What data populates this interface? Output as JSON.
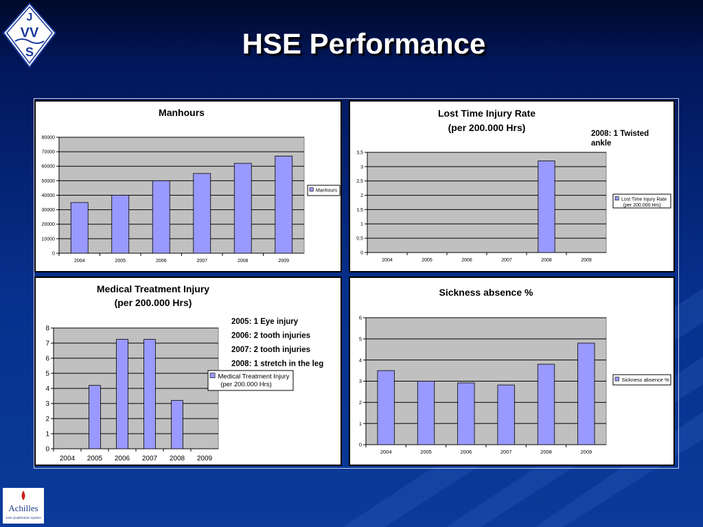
{
  "slide": {
    "title": "HSE Performance"
  },
  "logos": {
    "top": "JVS",
    "bottom_brand": "Achilles",
    "bottom_caption": "Joint Qualification System"
  },
  "colors": {
    "bar": "#9999ff",
    "plot_bg": "#c0c0c0",
    "background": "#06308c"
  },
  "chart_data": [
    {
      "type": "bar",
      "title": "Manhours",
      "categories": [
        "2004",
        "2005",
        "2006",
        "2007",
        "2008",
        "2009"
      ],
      "series": [
        {
          "name": "Manhours",
          "values": [
            35000,
            40000,
            50000,
            55000,
            62000,
            67000
          ]
        }
      ],
      "ylim": [
        0,
        80000
      ],
      "yticks": [
        "0",
        "10000",
        "20000",
        "30000",
        "40000",
        "50000",
        "60000",
        "70000",
        "80000"
      ],
      "legend": "right",
      "grid": true
    },
    {
      "type": "bar",
      "title": "Lost Time Injury Rate",
      "subtitle": "(per 200.000 Hrs)",
      "categories": [
        "2004",
        "2005",
        "2006",
        "2007",
        "2008",
        "2009"
      ],
      "series": [
        {
          "name": "Lost Time Injury Rate",
          "name2": "(per 200.000 Hrs)",
          "values": [
            0,
            0,
            0,
            0,
            3.2,
            0
          ]
        }
      ],
      "ylim": [
        0,
        3.5
      ],
      "yticks": [
        "0",
        "0,5",
        "1",
        "1,5",
        "2",
        "2,5",
        "3",
        "3,5"
      ],
      "annotations": [
        "2008: 1 Twisted",
        "ankle"
      ],
      "legend": "right",
      "grid": true
    },
    {
      "type": "bar",
      "title": "Medical Treatment Injury",
      "subtitle": "(per 200.000 Hrs)",
      "categories": [
        "2004",
        "2005",
        "2006",
        "2007",
        "2008",
        "2009"
      ],
      "series": [
        {
          "name": "Medical Treatment Injury",
          "name2": "(per 200.000 Hrs)",
          "values": [
            0,
            4.2,
            7.25,
            7.25,
            3.2,
            0
          ]
        }
      ],
      "ylim": [
        0,
        8
      ],
      "yticks": [
        "0",
        "1",
        "2",
        "3",
        "4",
        "5",
        "6",
        "7",
        "8"
      ],
      "annotations": [
        "2005: 1 Eye injury",
        "2006: 2 tooth injuries",
        "2007: 2 tooth injuries",
        "2008: 1 stretch in the leg"
      ],
      "legend": "right",
      "grid": true
    },
    {
      "type": "bar",
      "title": "Sickness absence %",
      "categories": [
        "2004",
        "2005",
        "2006",
        "2007",
        "2008",
        "2009"
      ],
      "series": [
        {
          "name": "Sickness absence %",
          "values": [
            3.5,
            3.0,
            2.92,
            2.82,
            3.8,
            4.8
          ]
        }
      ],
      "ylim": [
        0,
        6
      ],
      "yticks": [
        "0",
        "1",
        "2",
        "3",
        "4",
        "5",
        "6"
      ],
      "legend": "right",
      "grid": true
    }
  ]
}
